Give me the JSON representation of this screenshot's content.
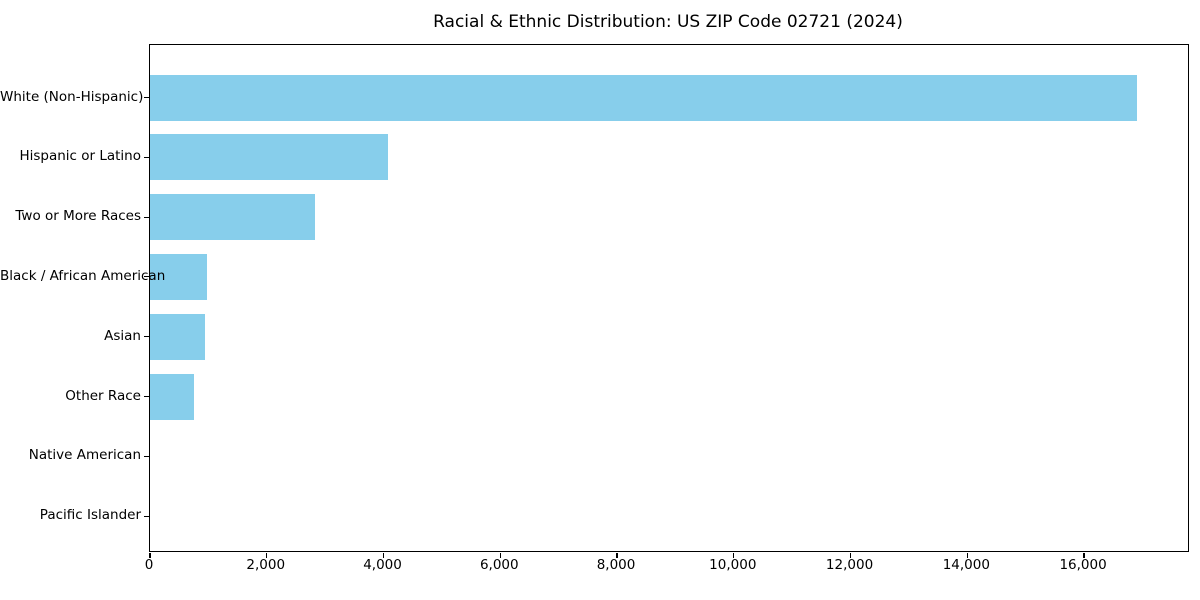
{
  "figure": {
    "background_color": "#ffffff",
    "text_color": "#000000",
    "spine_color": "#000000"
  },
  "chart_data": {
    "type": "bar",
    "orientation": "horizontal",
    "title": "Racial & Ethnic Distribution: US ZIP Code 02721 (2024)",
    "xlabel": "",
    "ylabel": "",
    "categories": [
      "White (Non-Hispanic)",
      "Hispanic or Latino",
      "Two or More Races",
      "Black / African American",
      "Asian",
      "Other Race",
      "Native American",
      "Pacific Islander"
    ],
    "values": [
      16900,
      4080,
      2830,
      980,
      940,
      750,
      0,
      0
    ],
    "bar_color": "#87CEEB",
    "xlim": [
      0,
      17780
    ],
    "xticks": [
      0,
      2000,
      4000,
      6000,
      8000,
      10000,
      12000,
      14000,
      16000
    ],
    "xtick_labels": [
      "0",
      "2,000",
      "4,000",
      "6,000",
      "8,000",
      "10,000",
      "12,000",
      "14,000",
      "16,000"
    ],
    "grid": false,
    "legend": null
  }
}
